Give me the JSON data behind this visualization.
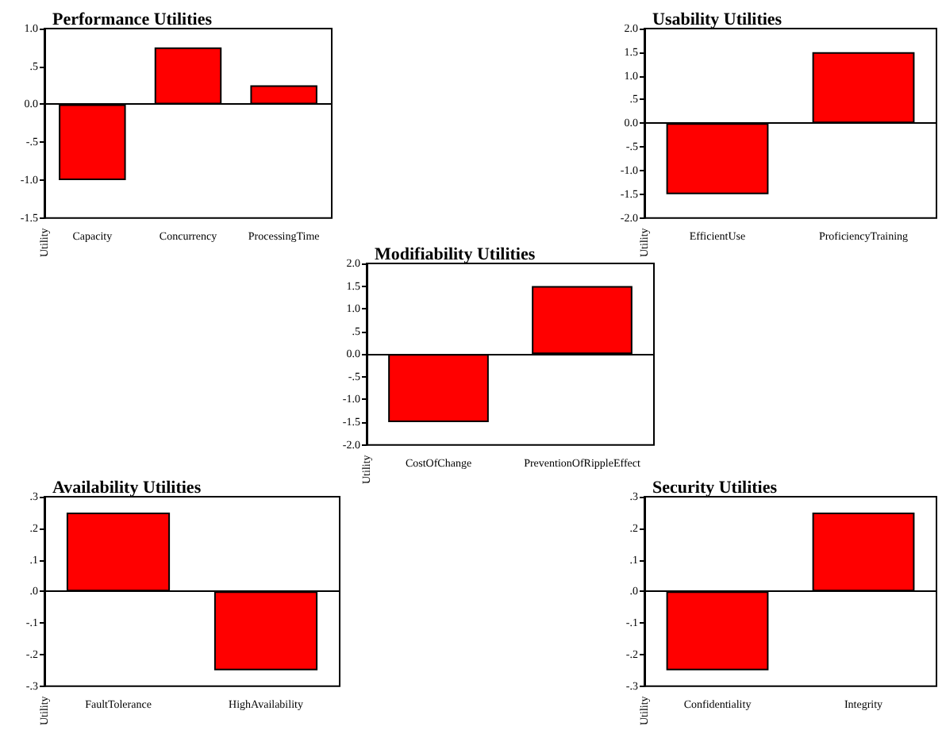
{
  "chart_data": [
    {
      "type": "bar",
      "title": "Performance Utilities",
      "ylabel": "Utility",
      "categories": [
        "Capacity",
        "Concurrency",
        "ProcessingTime"
      ],
      "values": [
        -1.0,
        0.75,
        0.25
      ],
      "color": "#ff0000",
      "ylim": [
        -1.5,
        1.0
      ],
      "yticks": [
        {
          "value": -1.5,
          "label": "-1.5"
        },
        {
          "value": -1.0,
          "label": "-1.0"
        },
        {
          "value": -0.5,
          "label": "-.5"
        },
        {
          "value": 0,
          "label": "0.0"
        },
        {
          "value": 0.5,
          "label": ".5"
        },
        {
          "value": 1.0,
          "label": "1.0"
        }
      ]
    },
    {
      "type": "bar",
      "title": "Usability Utilities",
      "ylabel": "Utility",
      "categories": [
        "EfficientUse",
        "ProficiencyTraining"
      ],
      "values": [
        -1.5,
        1.5
      ],
      "color": "#ff0000",
      "ylim": [
        -2.0,
        2.0
      ],
      "yticks": [
        {
          "value": -2.0,
          "label": "-2.0"
        },
        {
          "value": -1.5,
          "label": "-1.5"
        },
        {
          "value": -1.0,
          "label": "-1.0"
        },
        {
          "value": -0.5,
          "label": "-.5"
        },
        {
          "value": 0,
          "label": "0.0"
        },
        {
          "value": 0.5,
          "label": ".5"
        },
        {
          "value": 1.0,
          "label": "1.0"
        },
        {
          "value": 1.5,
          "label": "1.5"
        },
        {
          "value": 2.0,
          "label": "2.0"
        }
      ]
    },
    {
      "type": "bar",
      "title": "Modifiability Utilities",
      "ylabel": "Utility",
      "categories": [
        "CostOfChange",
        "PreventionOfRippleEffect"
      ],
      "values": [
        -1.5,
        1.5
      ],
      "color": "#ff0000",
      "ylim": [
        -2.0,
        2.0
      ],
      "yticks": [
        {
          "value": -2.0,
          "label": "-2.0"
        },
        {
          "value": -1.5,
          "label": "-1.5"
        },
        {
          "value": -1.0,
          "label": "-1.0"
        },
        {
          "value": -0.5,
          "label": "-.5"
        },
        {
          "value": 0,
          "label": "0.0"
        },
        {
          "value": 0.5,
          "label": ".5"
        },
        {
          "value": 1.0,
          "label": "1.0"
        },
        {
          "value": 1.5,
          "label": "1.5"
        },
        {
          "value": 2.0,
          "label": "2.0"
        }
      ]
    },
    {
      "type": "bar",
      "title": "Availability Utilities",
      "ylabel": "Utility",
      "categories": [
        "FaultTolerance",
        "HighAvailability"
      ],
      "values": [
        0.25,
        -0.25
      ],
      "color": "#ff0000",
      "ylim": [
        -0.3,
        0.3
      ],
      "yticks": [
        {
          "value": -0.3,
          "label": "-.3"
        },
        {
          "value": -0.2,
          "label": "-.2"
        },
        {
          "value": -0.1,
          "label": "-.1"
        },
        {
          "value": 0,
          "label": ".0"
        },
        {
          "value": 0.1,
          "label": ".1"
        },
        {
          "value": 0.2,
          "label": ".2"
        },
        {
          "value": 0.3,
          "label": ".3"
        }
      ]
    },
    {
      "type": "bar",
      "title": "Security Utilities",
      "ylabel": "Utility",
      "categories": [
        "Confidentiality",
        "Integrity"
      ],
      "values": [
        -0.25,
        0.25
      ],
      "color": "#ff0000",
      "ylim": [
        -0.3,
        0.3
      ],
      "yticks": [
        {
          "value": -0.3,
          "label": "-.3"
        },
        {
          "value": -0.2,
          "label": "-.2"
        },
        {
          "value": -0.1,
          "label": "-.1"
        },
        {
          "value": 0,
          "label": ".0"
        },
        {
          "value": 0.1,
          "label": ".1"
        },
        {
          "value": 0.2,
          "label": ".2"
        },
        {
          "value": 0.3,
          "label": ".3"
        }
      ]
    }
  ]
}
